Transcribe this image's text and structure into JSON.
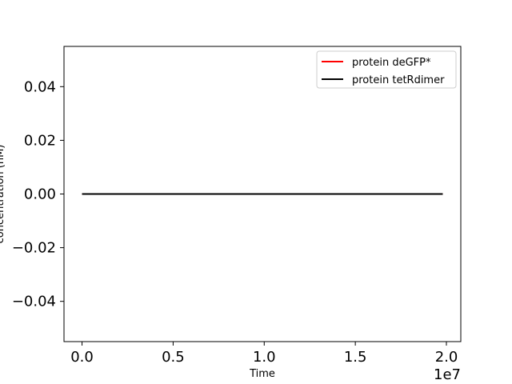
{
  "chart_data": {
    "type": "line",
    "title": "",
    "xlabel": "Time",
    "ylabel": "concentration (nM)",
    "x_offset_label": "1e7",
    "xlim": [
      -0.099,
      2.079
    ],
    "ylim": [
      -0.055,
      0.055
    ],
    "xticks": [
      0.0,
      0.5,
      1.0,
      1.5,
      2.0
    ],
    "xtick_labels": [
      "0.0",
      "0.5",
      "1.0",
      "1.5",
      "2.0"
    ],
    "yticks": [
      0.04,
      0.02,
      0.0,
      -0.02,
      -0.04
    ],
    "ytick_labels": [
      "0.04",
      "0.02",
      "0.00",
      "−0.02",
      "−0.04"
    ],
    "grid": false,
    "legend_position": "top-right",
    "series": [
      {
        "name": "protein deGFP*",
        "color": "#ff0000",
        "x": [
          0.0,
          1.98
        ],
        "y": [
          0.0,
          0.0
        ]
      },
      {
        "name": "protein tetRdimer",
        "color": "#000000",
        "x": [
          0.0,
          1.98
        ],
        "y": [
          0.0,
          0.0
        ]
      }
    ]
  }
}
